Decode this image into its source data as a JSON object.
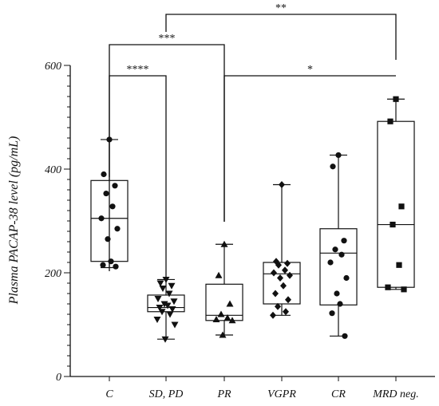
{
  "chart_data": {
    "type": "box",
    "ylabel": "Plasma PACAP-38 level (pg/mL)",
    "xlabel": "",
    "ylim": [
      0,
      600
    ],
    "yticks": [
      0,
      200,
      400,
      600
    ],
    "grid": false,
    "categories": [
      "C",
      "SD, PD",
      "PR",
      "VGPR",
      "CR",
      "MRD neg."
    ],
    "groups": [
      {
        "category": "C",
        "marker": "circle",
        "min": 210,
        "q1": 222,
        "median": 305,
        "q3": 378,
        "max": 457,
        "points": [
          457,
          390,
          368,
          353,
          328,
          305,
          285,
          265,
          222,
          215,
          212
        ]
      },
      {
        "category": "SD, PD",
        "marker": "triangle-down",
        "min": 72,
        "q1": 125,
        "median": 133,
        "q3": 157,
        "max": 187,
        "points": [
          187,
          180,
          175,
          170,
          160,
          150,
          145,
          140,
          137,
          133,
          130,
          125,
          120,
          110,
          100,
          72
        ]
      },
      {
        "category": "PR",
        "marker": "triangle-up",
        "min": 80,
        "q1": 108,
        "median": 118,
        "q3": 178,
        "max": 255,
        "points": [
          255,
          195,
          140,
          120,
          113,
          110,
          108,
          80
        ]
      },
      {
        "category": "VGPR",
        "marker": "diamond",
        "min": 118,
        "q1": 140,
        "median": 198,
        "q3": 220,
        "max": 370,
        "points": [
          370,
          222,
          218,
          215,
          205,
          200,
          195,
          190,
          175,
          160,
          148,
          135,
          125,
          118
        ]
      },
      {
        "category": "CR",
        "marker": "circle",
        "min": 78,
        "q1": 138,
        "median": 238,
        "q3": 285,
        "max": 427,
        "points": [
          427,
          405,
          262,
          245,
          235,
          220,
          190,
          160,
          140,
          122,
          78
        ]
      },
      {
        "category": "MRD neg.",
        "marker": "square",
        "min": 168,
        "q1": 172,
        "median": 293,
        "q3": 492,
        "max": 535,
        "points": [
          535,
          492,
          328,
          293,
          215,
          172,
          168
        ]
      }
    ],
    "significance": [
      {
        "from": "C",
        "to": "SD, PD",
        "label": "****"
      },
      {
        "from": "C",
        "to": "PR",
        "label": "***"
      },
      {
        "from": "SD, PD",
        "to": "MRD neg.",
        "label": "**"
      },
      {
        "from": "PR",
        "to": "MRD neg.",
        "label": "*"
      }
    ]
  }
}
